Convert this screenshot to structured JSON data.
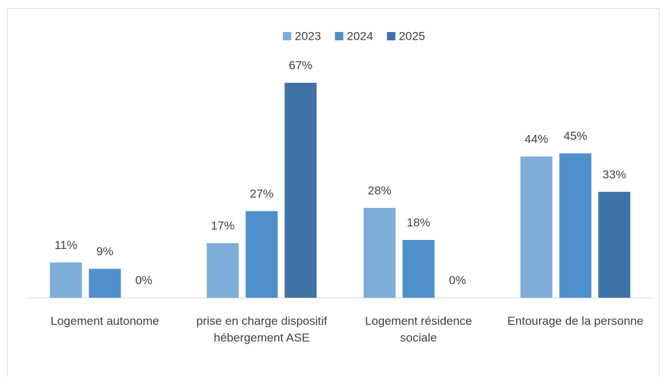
{
  "chart_data": {
    "type": "bar",
    "categories": [
      "Logement autonome",
      "prise en charge dispositif hébergement ASE",
      "Logement résidence sociale",
      "Entourage de la personne"
    ],
    "series": [
      {
        "name": "2023",
        "color": "#7fadd9",
        "values": [
          11,
          17,
          28,
          44
        ],
        "value_labels": [
          "11%",
          "17%",
          "28%",
          "44%"
        ]
      },
      {
        "name": "2024",
        "color": "#4f8fcc",
        "values": [
          9,
          27,
          18,
          45
        ],
        "value_labels": [
          "9%",
          "27%",
          "18%",
          "45%"
        ]
      },
      {
        "name": "2025",
        "color": "#3f72a6",
        "values": [
          0,
          67,
          0,
          33
        ],
        "value_labels": [
          "0%",
          "67%",
          "0%",
          "33%"
        ]
      }
    ],
    "legend": "top"
  }
}
